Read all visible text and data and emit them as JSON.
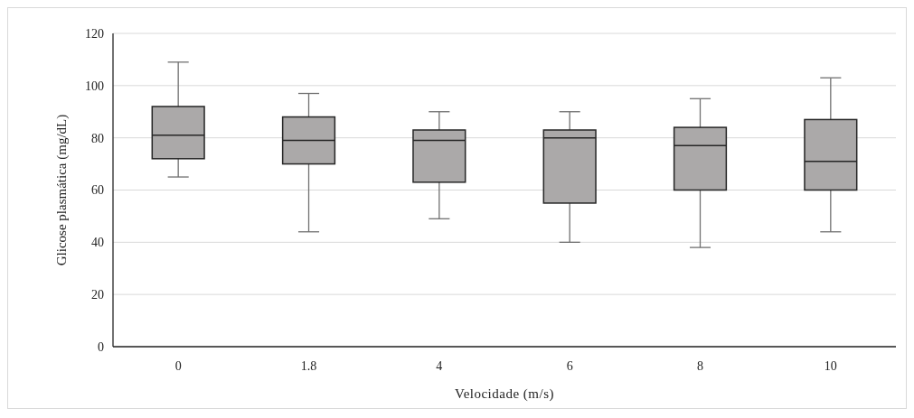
{
  "chart_data": {
    "type": "box",
    "xlabel": "Velocidade (m/s)",
    "ylabel": "Glicose plasmática (mg/dL)",
    "categories": [
      "0",
      "1.8",
      "4",
      "6",
      "8",
      "10"
    ],
    "series": [
      {
        "color": "#aba9a9",
        "boxes": [
          {
            "low": 65,
            "q1": 72,
            "median": 81,
            "q3": 92,
            "high": 109
          },
          {
            "low": 44,
            "q1": 70,
            "median": 79,
            "q3": 88,
            "high": 97
          },
          {
            "low": 49,
            "q1": 63,
            "median": 79,
            "q3": 83,
            "high": 90
          },
          {
            "low": 40,
            "q1": 55,
            "median": 80,
            "q3": 83,
            "high": 90
          },
          {
            "low": 38,
            "q1": 60,
            "median": 77,
            "q3": 84,
            "high": 95
          },
          {
            "low": 44,
            "q1": 60,
            "median": 71,
            "q3": 87,
            "high": 103
          }
        ]
      }
    ],
    "ylim": [
      0,
      120
    ],
    "yticks": [
      0,
      20,
      40,
      60,
      80,
      100,
      120
    ],
    "grid": "y"
  }
}
